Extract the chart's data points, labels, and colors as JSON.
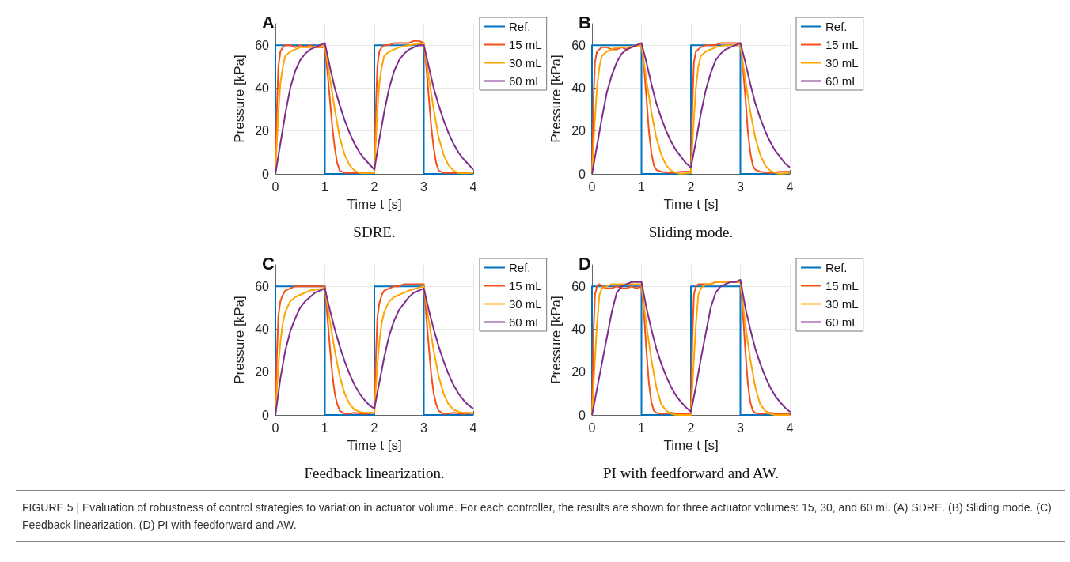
{
  "chart_data": [
    {
      "type": "line",
      "title": "A",
      "xlabel": "Time t [s]",
      "ylabel": "Pressure [kPa]",
      "annotations": [
        "SDRE."
      ],
      "xlim": [
        0,
        4
      ],
      "xticks": [
        0,
        1,
        2,
        3,
        4
      ],
      "ylim": [
        0,
        70
      ],
      "yticks": [
        0,
        20,
        40,
        60
      ],
      "grid": true,
      "legend": "top right",
      "marker": "none",
      "line_style": "solid",
      "series": [
        {
          "name": "Ref.",
          "color": "#0072bd",
          "x": [
            0,
            0,
            1,
            1,
            2,
            2,
            3,
            3,
            4
          ],
          "values": [
            0,
            60,
            60,
            0,
            0,
            60,
            60,
            0,
            0
          ]
        },
        {
          "name": "15 mL",
          "color": "#f5501a",
          "x": [
            0,
            0.03,
            0.06,
            0.1,
            0.15,
            0.2,
            0.3,
            0.4,
            0.5,
            0.6,
            0.7,
            0.8,
            0.9,
            1.0,
            1.05,
            1.1,
            1.15,
            1.2,
            1.25,
            1.3,
            1.4,
            1.6,
            1.8,
            2.0,
            2.03,
            2.06,
            2.1,
            2.15,
            2.2,
            2.3,
            2.4,
            2.5,
            2.6,
            2.7,
            2.8,
            2.9,
            3.0,
            3.05,
            3.1,
            3.15,
            3.2,
            3.25,
            3.3,
            3.4,
            3.6,
            3.8,
            4.0
          ],
          "values": [
            0,
            30,
            50,
            57,
            59,
            60,
            60,
            59,
            60,
            59,
            60,
            59,
            59,
            59,
            48,
            35,
            22,
            12,
            5,
            1.5,
            0.5,
            0.5,
            0.5,
            0.5,
            30,
            50,
            57,
            59,
            60,
            60,
            61,
            61,
            61,
            61,
            62,
            62,
            61,
            50,
            36,
            22,
            12,
            5,
            1.5,
            0.5,
            0.5,
            0.5,
            0.5
          ]
        },
        {
          "name": "30 mL",
          "color": "#ffa500",
          "x": [
            0,
            0.05,
            0.1,
            0.15,
            0.2,
            0.3,
            0.4,
            0.5,
            0.7,
            1.0,
            1.1,
            1.2,
            1.3,
            1.4,
            1.5,
            1.6,
            1.7,
            1.8,
            2.0,
            2.05,
            2.1,
            2.15,
            2.2,
            2.3,
            2.4,
            2.5,
            2.7,
            3.0,
            3.1,
            3.2,
            3.3,
            3.4,
            3.5,
            3.6,
            3.7,
            3.8,
            4.0
          ],
          "values": [
            0,
            25,
            42,
            50,
            55,
            57,
            58,
            59,
            59,
            60,
            45,
            30,
            17,
            9,
            4,
            1.5,
            0.5,
            0.3,
            0.5,
            25,
            42,
            50,
            55,
            57,
            58,
            59,
            60,
            61,
            45,
            30,
            17,
            9,
            4,
            1.5,
            0.5,
            0.3,
            0.5
          ]
        },
        {
          "name": "60 mL",
          "color": "#7e2f8e",
          "x": [
            0,
            0.1,
            0.2,
            0.3,
            0.4,
            0.5,
            0.6,
            0.7,
            0.8,
            0.9,
            1.0,
            1.1,
            1.2,
            1.3,
            1.4,
            1.5,
            1.6,
            1.7,
            1.8,
            1.9,
            2.0,
            2.1,
            2.2,
            2.3,
            2.4,
            2.5,
            2.6,
            2.7,
            2.8,
            2.9,
            3.0,
            3.1,
            3.2,
            3.3,
            3.4,
            3.5,
            3.6,
            3.7,
            3.8,
            3.9,
            4.0
          ],
          "values": [
            0,
            14,
            28,
            40,
            48,
            53,
            56,
            58,
            59,
            60,
            61,
            50,
            40,
            32,
            25,
            19,
            14,
            10,
            7,
            4.5,
            2,
            16,
            29,
            40,
            48,
            53,
            56,
            58,
            59,
            60,
            60,
            50,
            40,
            32,
            25,
            19,
            14,
            10,
            7,
            4.5,
            2
          ]
        }
      ]
    },
    {
      "type": "line",
      "title": "B",
      "xlabel": "Time t [s]",
      "ylabel": "Pressure [kPa]",
      "annotations": [
        "Sliding mode."
      ],
      "xlim": [
        0,
        4
      ],
      "xticks": [
        0,
        1,
        2,
        3,
        4
      ],
      "ylim": [
        0,
        70
      ],
      "yticks": [
        0,
        20,
        40,
        60
      ],
      "grid": true,
      "legend": "top right",
      "marker": "none",
      "line_style": "solid",
      "series": [
        {
          "name": "Ref.",
          "color": "#0072bd",
          "x": [
            0,
            0,
            1,
            1,
            2,
            2,
            3,
            3,
            4
          ],
          "values": [
            0,
            60,
            60,
            0,
            0,
            60,
            60,
            0,
            0
          ]
        },
        {
          "name": "15 mL",
          "color": "#f5501a",
          "x": [
            0,
            0.03,
            0.06,
            0.1,
            0.15,
            0.2,
            0.3,
            0.4,
            0.5,
            0.6,
            0.7,
            0.8,
            0.9,
            1.0,
            1.05,
            1.1,
            1.15,
            1.2,
            1.25,
            1.3,
            1.4,
            1.6,
            1.8,
            2.0,
            2.03,
            2.06,
            2.1,
            2.15,
            2.2,
            2.3,
            2.4,
            2.5,
            2.6,
            2.7,
            2.8,
            2.9,
            3.0,
            3.05,
            3.1,
            3.15,
            3.2,
            3.25,
            3.3,
            3.4,
            3.6,
            3.8,
            4.0
          ],
          "values": [
            0,
            35,
            52,
            57,
            58,
            59,
            59,
            58,
            58,
            59,
            58,
            59,
            60,
            60,
            50,
            36,
            20,
            10,
            4,
            2,
            1,
            0.5,
            1,
            1,
            32,
            52,
            57,
            58,
            59,
            60,
            60,
            60,
            61,
            61,
            61,
            61,
            61,
            50,
            36,
            20,
            10,
            4,
            2,
            1,
            0.5,
            1,
            1
          ]
        },
        {
          "name": "30 mL",
          "color": "#ffa500",
          "x": [
            0,
            0.05,
            0.1,
            0.15,
            0.2,
            0.3,
            0.4,
            0.5,
            0.7,
            1.0,
            1.1,
            1.2,
            1.3,
            1.4,
            1.5,
            1.6,
            1.7,
            1.8,
            2.0,
            2.05,
            2.1,
            2.15,
            2.2,
            2.3,
            2.4,
            2.5,
            2.7,
            3.0,
            3.1,
            3.2,
            3.3,
            3.4,
            3.5,
            3.6,
            3.7,
            3.8,
            4.0
          ],
          "values": [
            0,
            22,
            40,
            50,
            55,
            57,
            58,
            59,
            59,
            60,
            44,
            29,
            17,
            9,
            4,
            1.5,
            0.5,
            0,
            0.5,
            22,
            40,
            50,
            55,
            57,
            58,
            59,
            60,
            60,
            44,
            29,
            17,
            9,
            4,
            1.5,
            0.5,
            0,
            0.5
          ]
        },
        {
          "name": "60 mL",
          "color": "#7e2f8e",
          "x": [
            0,
            0.1,
            0.2,
            0.3,
            0.4,
            0.5,
            0.6,
            0.7,
            0.8,
            0.9,
            1.0,
            1.1,
            1.2,
            1.3,
            1.4,
            1.5,
            1.6,
            1.7,
            1.8,
            1.9,
            2.0,
            2.1,
            2.2,
            2.3,
            2.4,
            2.5,
            2.6,
            2.7,
            2.8,
            2.9,
            3.0,
            3.1,
            3.2,
            3.3,
            3.4,
            3.5,
            3.6,
            3.7,
            3.8,
            3.9,
            4.0
          ],
          "values": [
            0,
            13,
            26,
            38,
            46,
            52,
            56,
            58,
            59,
            60,
            61,
            52,
            42,
            33,
            26,
            20,
            15,
            11,
            8,
            5,
            3,
            15,
            28,
            39,
            47,
            53,
            56,
            58,
            59,
            60,
            61,
            52,
            42,
            33,
            26,
            20,
            15,
            11,
            8,
            5,
            3
          ]
        }
      ]
    },
    {
      "type": "line",
      "title": "C",
      "xlabel": "Time t [s]",
      "ylabel": "Pressure [kPa]",
      "annotations": [
        "Feedback linearization."
      ],
      "xlim": [
        0,
        4
      ],
      "xticks": [
        0,
        1,
        2,
        3,
        4
      ],
      "ylim": [
        0,
        70
      ],
      "yticks": [
        0,
        20,
        40,
        60
      ],
      "grid": true,
      "legend": "top right",
      "marker": "none",
      "line_style": "solid",
      "series": [
        {
          "name": "Ref.",
          "color": "#0072bd",
          "x": [
            0,
            0,
            1,
            1,
            2,
            2,
            3,
            3,
            4
          ],
          "values": [
            0,
            60,
            60,
            0,
            0,
            60,
            60,
            0,
            0
          ]
        },
        {
          "name": "15 mL",
          "color": "#f5501a",
          "x": [
            0,
            0.03,
            0.06,
            0.1,
            0.15,
            0.2,
            0.3,
            0.4,
            0.5,
            0.6,
            0.7,
            0.8,
            0.9,
            1.0,
            1.05,
            1.1,
            1.15,
            1.2,
            1.25,
            1.3,
            1.4,
            1.6,
            1.8,
            2.0,
            2.03,
            2.06,
            2.1,
            2.15,
            2.2,
            2.3,
            2.4,
            2.5,
            2.6,
            2.7,
            2.8,
            2.9,
            3.0,
            3.05,
            3.1,
            3.15,
            3.2,
            3.25,
            3.3,
            3.4,
            3.6,
            3.8,
            4.0
          ],
          "values": [
            0,
            28,
            46,
            53,
            56,
            58,
            59,
            60,
            60,
            60,
            60,
            60,
            60,
            60,
            46,
            32,
            19,
            10,
            5,
            2,
            0.5,
            1,
            0.5,
            1,
            26,
            45,
            52,
            56,
            58,
            59,
            60,
            60,
            61,
            61,
            61,
            61,
            61,
            46,
            32,
            19,
            10,
            5,
            2,
            0.5,
            1,
            0.5,
            1
          ]
        },
        {
          "name": "30 mL",
          "color": "#ffa500",
          "x": [
            0,
            0.05,
            0.1,
            0.15,
            0.2,
            0.3,
            0.4,
            0.5,
            0.7,
            1.0,
            1.1,
            1.2,
            1.3,
            1.4,
            1.5,
            1.6,
            1.7,
            1.8,
            2.0,
            2.05,
            2.1,
            2.15,
            2.2,
            2.3,
            2.4,
            2.5,
            2.7,
            3.0,
            3.1,
            3.2,
            3.3,
            3.4,
            3.5,
            3.6,
            3.7,
            3.8,
            4.0
          ],
          "values": [
            0,
            20,
            34,
            43,
            48,
            53,
            55,
            56,
            58,
            59,
            44,
            30,
            18,
            10,
            5,
            2.5,
            1.5,
            1,
            1,
            20,
            34,
            43,
            48,
            53,
            55,
            56,
            58,
            60,
            44,
            30,
            18,
            10,
            5,
            2.5,
            1.5,
            1,
            1
          ]
        },
        {
          "name": "60 mL",
          "color": "#7e2f8e",
          "x": [
            0,
            0.1,
            0.2,
            0.3,
            0.4,
            0.5,
            0.6,
            0.7,
            0.8,
            0.9,
            1.0,
            1.1,
            1.2,
            1.3,
            1.4,
            1.5,
            1.6,
            1.7,
            1.8,
            1.9,
            2.0,
            2.1,
            2.2,
            2.3,
            2.4,
            2.5,
            2.6,
            2.7,
            2.8,
            2.9,
            3.0,
            3.1,
            3.2,
            3.3,
            3.4,
            3.5,
            3.6,
            3.7,
            3.8,
            3.9,
            4.0
          ],
          "values": [
            0,
            17,
            30,
            39,
            45,
            50,
            53,
            55,
            57,
            58,
            59,
            49,
            40,
            32,
            25,
            19,
            14,
            10,
            7,
            4.5,
            3,
            15,
            27,
            37,
            44,
            49,
            52,
            55,
            57,
            58,
            59,
            49,
            40,
            32,
            25,
            19,
            14,
            10,
            7,
            4.5,
            3
          ]
        }
      ]
    },
    {
      "type": "line",
      "title": "D",
      "xlabel": "Time t [s]",
      "ylabel": "Pressure [kPa]",
      "annotations": [
        "PI with feedforward and AW."
      ],
      "xlim": [
        0,
        4
      ],
      "xticks": [
        0,
        1,
        2,
        3,
        4
      ],
      "ylim": [
        0,
        70
      ],
      "yticks": [
        0,
        20,
        40,
        60
      ],
      "grid": true,
      "legend": "top right",
      "marker": "none",
      "line_style": "solid",
      "series": [
        {
          "name": "Ref.",
          "color": "#0072bd",
          "x": [
            0,
            0,
            1,
            1,
            2,
            2,
            3,
            3,
            4
          ],
          "values": [
            0,
            60,
            60,
            0,
            0,
            60,
            60,
            0,
            0
          ]
        },
        {
          "name": "15 mL",
          "color": "#f5501a",
          "x": [
            0,
            0.03,
            0.06,
            0.1,
            0.15,
            0.2,
            0.3,
            0.4,
            0.5,
            0.6,
            0.7,
            0.8,
            0.9,
            1.0,
            1.05,
            1.1,
            1.15,
            1.2,
            1.25,
            1.3,
            1.4,
            1.6,
            1.8,
            2.0,
            2.03,
            2.06,
            2.1,
            2.15,
            2.2,
            2.3,
            2.4,
            2.5,
            2.6,
            2.7,
            2.8,
            2.9,
            3.0,
            3.05,
            3.1,
            3.15,
            3.2,
            3.25,
            3.3,
            3.4,
            3.6,
            3.8,
            4.0
          ],
          "values": [
            0,
            38,
            56,
            60,
            61,
            60,
            59,
            59,
            60,
            59,
            59,
            60,
            59,
            60,
            48,
            30,
            15,
            6,
            2,
            1,
            0.5,
            1,
            0.5,
            0.5,
            36,
            56,
            60,
            61,
            61,
            61,
            61,
            62,
            62,
            62,
            62,
            62,
            62,
            48,
            30,
            15,
            6,
            2,
            1,
            0.5,
            1,
            0.5,
            0.5
          ]
        },
        {
          "name": "30 mL",
          "color": "#ffa500",
          "x": [
            0,
            0.05,
            0.1,
            0.15,
            0.2,
            0.3,
            0.4,
            0.5,
            0.7,
            1.0,
            1.1,
            1.2,
            1.3,
            1.4,
            1.5,
            1.6,
            1.7,
            1.8,
            2.0,
            2.05,
            2.1,
            2.15,
            2.2,
            2.3,
            2.4,
            2.5,
            2.7,
            3.0,
            3.1,
            3.2,
            3.3,
            3.4,
            3.5,
            3.6,
            3.7,
            3.8,
            4.0
          ],
          "values": [
            0,
            22,
            42,
            56,
            59,
            60,
            61,
            61,
            61,
            61,
            42,
            26,
            13,
            5,
            2,
            0.5,
            0,
            0,
            0,
            22,
            42,
            56,
            59,
            61,
            61,
            62,
            62,
            62,
            42,
            26,
            13,
            5,
            2,
            0.5,
            0,
            0,
            0
          ]
        },
        {
          "name": "60 mL",
          "color": "#7e2f8e",
          "x": [
            0,
            0.1,
            0.2,
            0.3,
            0.4,
            0.5,
            0.6,
            0.7,
            0.8,
            0.9,
            1.0,
            1.1,
            1.2,
            1.3,
            1.4,
            1.5,
            1.6,
            1.7,
            1.8,
            1.9,
            2.0,
            2.1,
            2.2,
            2.3,
            2.4,
            2.5,
            2.6,
            2.7,
            2.8,
            2.9,
            3.0,
            3.1,
            3.2,
            3.3,
            3.4,
            3.5,
            3.6,
            3.7,
            3.8,
            3.9,
            4.0
          ],
          "values": [
            0,
            12,
            24,
            36,
            48,
            57,
            60,
            61,
            62,
            62,
            62,
            50,
            40,
            31,
            24,
            18,
            13,
            9,
            6,
            3.5,
            1.5,
            13,
            26,
            38,
            50,
            57,
            60,
            61,
            62,
            62,
            63,
            50,
            40,
            31,
            24,
            18,
            13,
            9,
            6,
            3.5,
            1.5
          ]
        }
      ]
    },
    {
      "type": "other",
      "annotations": [
        "FIGURE 5 | Evaluation of robustness of control strategies to variation in actuator volume. For each controller, the results are shown for three actuator volumes: 15, 30, and 60 ml. (A) SDRE. (B) Sliding mode. (C) Feedback linearization. (D) PI with feedforward and AW."
      ]
    }
  ]
}
